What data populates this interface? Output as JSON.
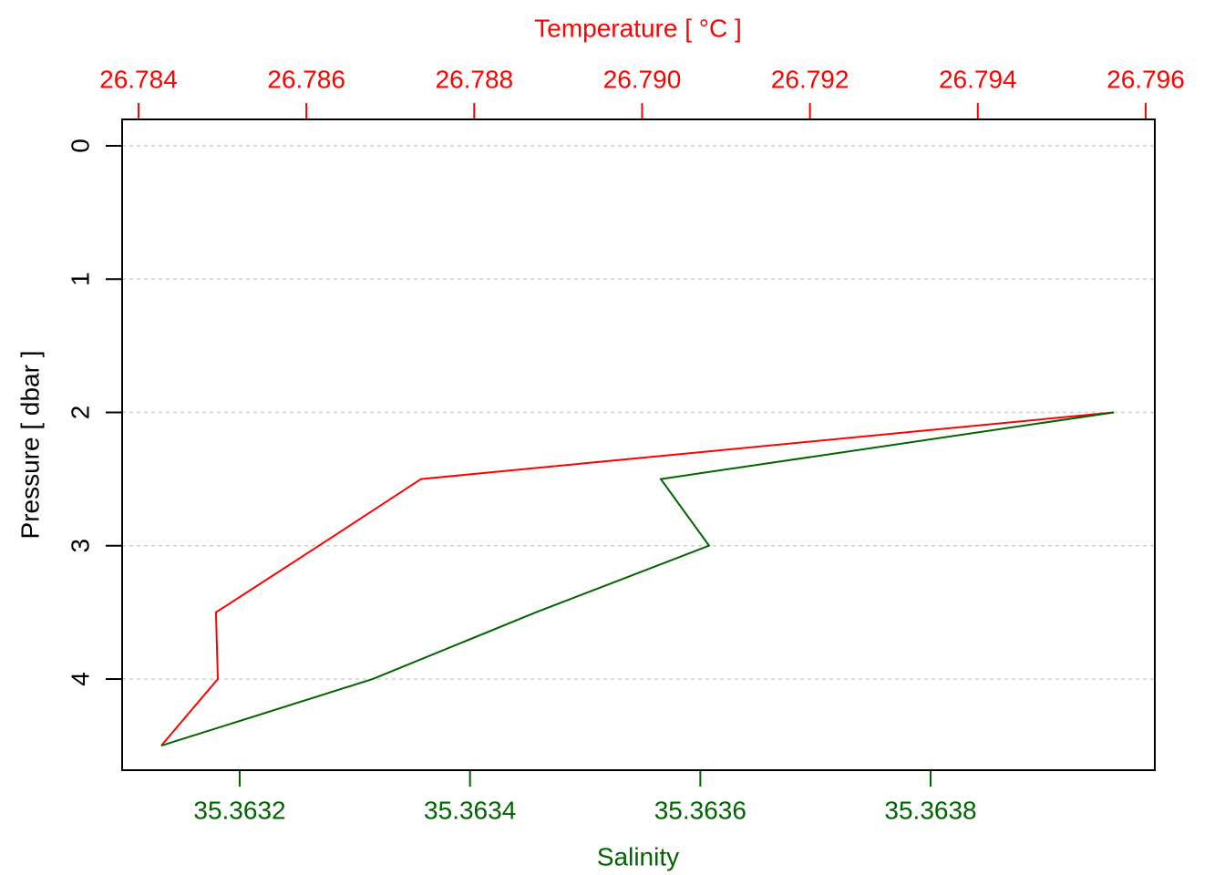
{
  "chart_data": {
    "type": "line",
    "x2label": "Temperature [ °C ]",
    "xlabel": "Salinity",
    "ylabel": "Pressure [ dbar ]",
    "y": [
      2,
      2.5,
      3,
      3.5,
      4,
      4.5
    ],
    "series": [
      {
        "color": "#ff0000",
        "axis": "x2",
        "values": [
          26.795618,
          26.787366,
          26.78615,
          26.784923,
          26.784945,
          26.784271
        ]
      },
      {
        "color": "#006400",
        "axis": "x",
        "values": [
          35.363959,
          35.3635657,
          35.3636076,
          35.3634572,
          35.3633156,
          35.3631319
        ]
      }
    ],
    "x2lim": [
      26.783805,
      26.796109
    ],
    "x2ticks": [
      26.784,
      26.786,
      26.788,
      {
        "value": 26.79,
        "label": "26.790"
      },
      26.792,
      26.794,
      26.796
    ],
    "x2color": "#ff0000",
    "xlim": [
      35.3630979,
      35.3639947
    ],
    "xticks": [
      35.3632,
      35.3634,
      35.3636,
      35.3638
    ],
    "xcolor": "#006400",
    "ylim": [
      4.684,
      -0.198
    ],
    "yticks": [
      0,
      1,
      2,
      3,
      4
    ],
    "grid": true
  }
}
